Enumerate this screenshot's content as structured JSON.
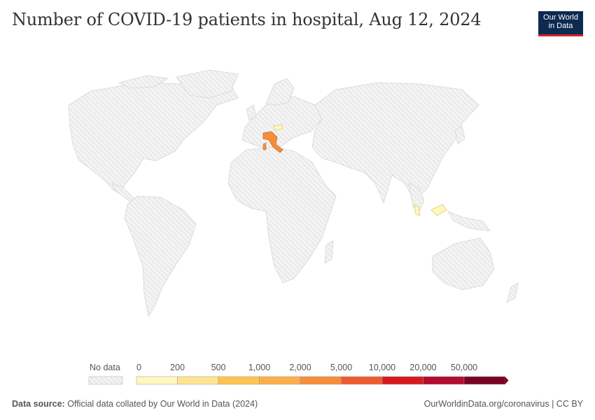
{
  "header": {
    "title": "Number of COVID-19 patients in hospital, Aug 12, 2024",
    "logo_line1": "Our World",
    "logo_line2": "in Data"
  },
  "legend": {
    "no_data_label": "No data",
    "ticks": [
      "0",
      "200",
      "500",
      "1,000",
      "2,000",
      "5,000",
      "10,000",
      "20,000",
      "50,000"
    ],
    "colors": [
      "#fff7bc",
      "#fee391",
      "#fec44f",
      "#fdae4b",
      "#f68d3a",
      "#ef5a2f",
      "#d7191c",
      "#b30b2f",
      "#7a0122"
    ]
  },
  "regions_with_data": [
    {
      "name": "Italy",
      "color": "#f68d3a"
    },
    {
      "name": "Slovakia/Hungary region",
      "color": "#fff7bc"
    },
    {
      "name": "Malaysia",
      "color": "#fff7bc"
    }
  ],
  "footer": {
    "source_label": "Data source:",
    "source_text": "Official data collated by Our World in Data (2024)",
    "url": "OurWorldinData.org/coronavirus | CC BY"
  }
}
